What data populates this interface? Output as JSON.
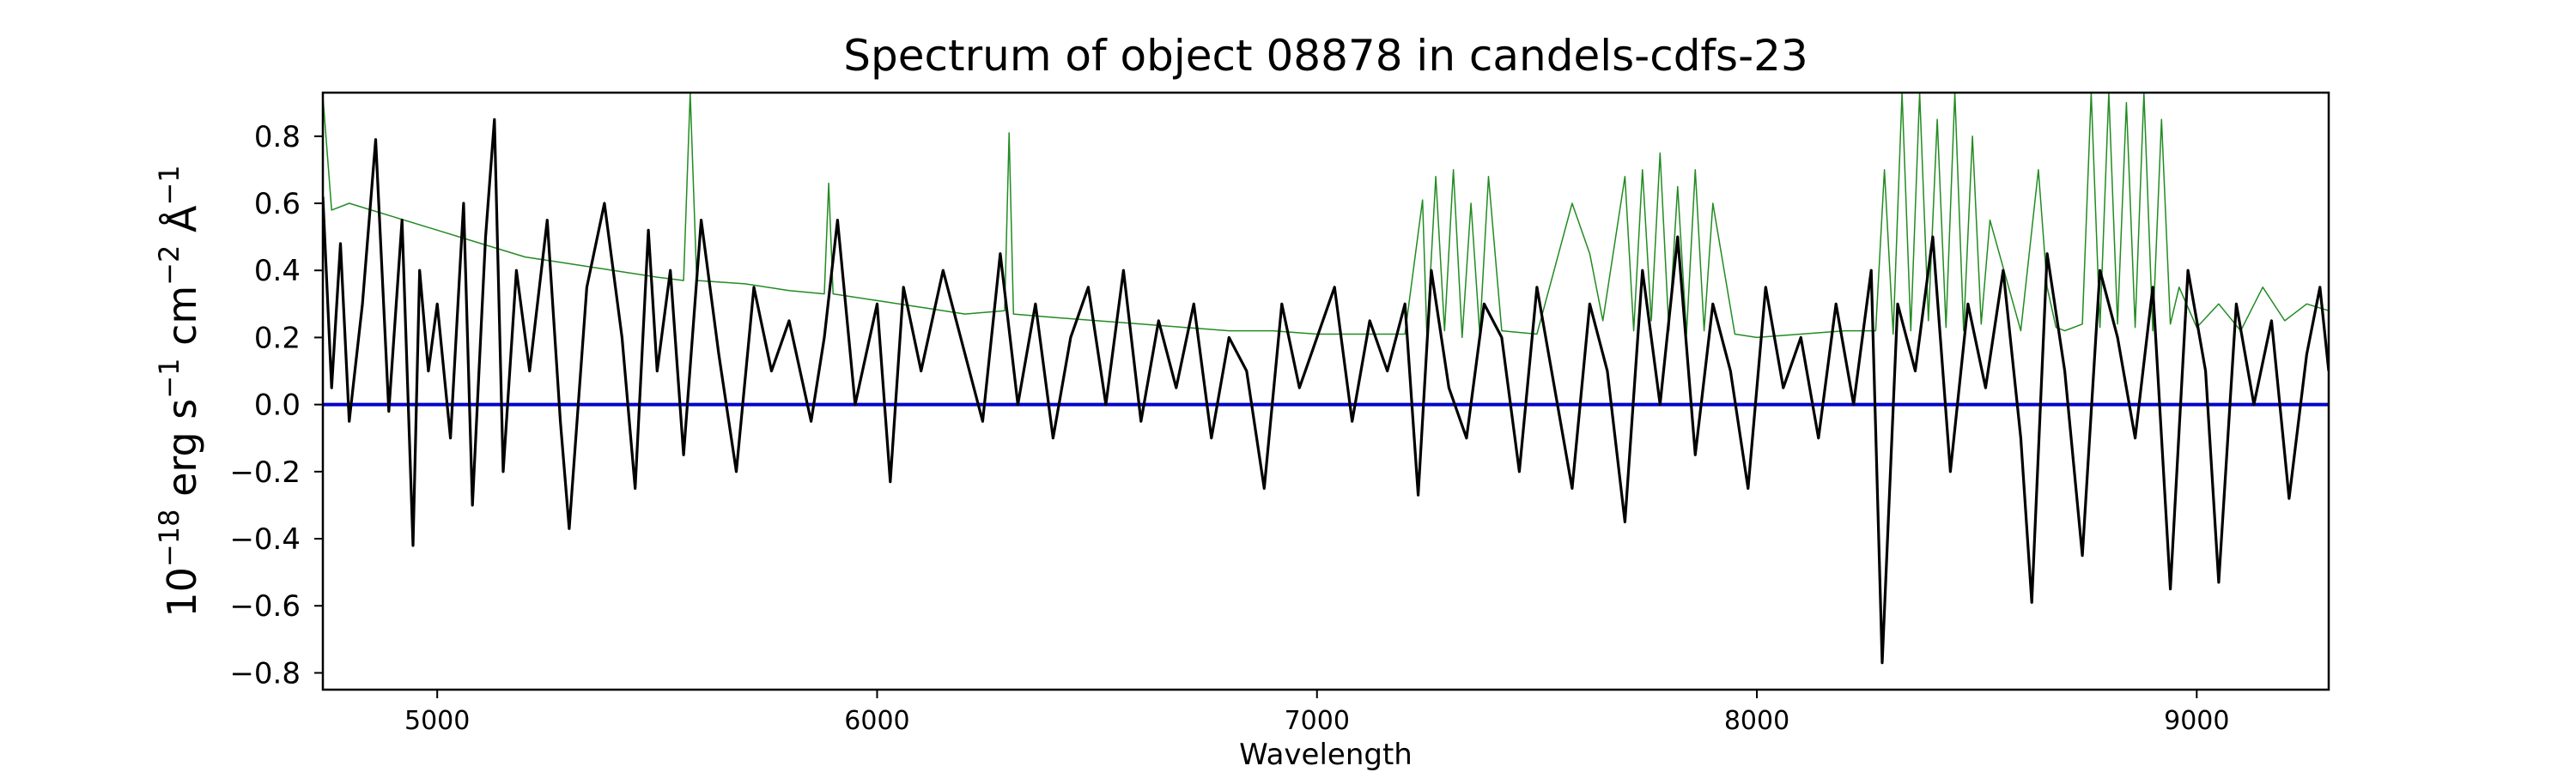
{
  "chart_data": {
    "type": "line",
    "title": "Spectrum of object 08878 in candels-cdfs-23",
    "xlabel": "Wavelength",
    "ylabel": {
      "base": "10",
      "exp1": "−18",
      "unit1": " erg s",
      "exp2": "−1",
      "unit2": " cm",
      "exp3": "−2",
      "unit3": " Å",
      "exp4": "−1"
    },
    "xlim": [
      4740,
      9300
    ],
    "ylim": [
      -0.85,
      0.93
    ],
    "xticks": [
      5000,
      6000,
      7000,
      8000,
      9000
    ],
    "xtick_labels": [
      "5000",
      "6000",
      "7000",
      "8000",
      "9000"
    ],
    "yticks": [
      0.8,
      0.6,
      0.4,
      0.2,
      0.0,
      -0.2,
      -0.4,
      -0.6,
      -0.8
    ],
    "ytick_labels": [
      "0.8",
      "0.6",
      "0.4",
      "0.2",
      "0.0",
      "−0.2",
      "−0.4",
      "−0.6",
      "−0.8"
    ],
    "grid": false,
    "series": [
      {
        "role": "flux",
        "color": "#000000",
        "x": [
          4740,
          4760,
          4780,
          4800,
          4830,
          4860,
          4890,
          4920,
          4945,
          4960,
          4980,
          5000,
          5030,
          5060,
          5080,
          5110,
          5130,
          5150,
          5180,
          5210,
          5250,
          5280,
          5300,
          5340,
          5380,
          5420,
          5450,
          5480,
          5500,
          5530,
          5560,
          5600,
          5640,
          5680,
          5720,
          5760,
          5800,
          5850,
          5880,
          5910,
          5950,
          6000,
          6030,
          6060,
          6100,
          6150,
          6200,
          6240,
          6280,
          6320,
          6360,
          6400,
          6440,
          6480,
          6520,
          6560,
          6600,
          6640,
          6680,
          6720,
          6760,
          6800,
          6840,
          6880,
          6920,
          6960,
          7000,
          7040,
          7080,
          7120,
          7160,
          7200,
          7230,
          7260,
          7300,
          7340,
          7380,
          7420,
          7460,
          7500,
          7540,
          7580,
          7620,
          7660,
          7700,
          7740,
          7780,
          7820,
          7860,
          7900,
          7940,
          7980,
          8020,
          8060,
          8100,
          8140,
          8180,
          8220,
          8260,
          8285,
          8320,
          8360,
          8400,
          8440,
          8480,
          8520,
          8560,
          8600,
          8625,
          8660,
          8700,
          8740,
          8780,
          8820,
          8860,
          8900,
          8940,
          8980,
          9020,
          9050,
          9090,
          9130,
          9170,
          9210,
          9250,
          9280,
          9300
        ],
        "y": [
          0.62,
          0.05,
          0.48,
          -0.05,
          0.3,
          0.79,
          -0.02,
          0.55,
          -0.42,
          0.4,
          0.1,
          0.3,
          -0.1,
          0.6,
          -0.3,
          0.5,
          0.85,
          -0.2,
          0.4,
          0.1,
          0.55,
          -0.05,
          -0.37,
          0.35,
          0.6,
          0.2,
          -0.25,
          0.52,
          0.1,
          0.4,
          -0.15,
          0.55,
          0.15,
          -0.2,
          0.35,
          0.1,
          0.25,
          -0.05,
          0.2,
          0.55,
          0.0,
          0.3,
          -0.23,
          0.35,
          0.1,
          0.4,
          0.15,
          -0.05,
          0.45,
          0.0,
          0.3,
          -0.1,
          0.2,
          0.35,
          0.0,
          0.4,
          -0.05,
          0.25,
          0.05,
          0.3,
          -0.1,
          0.2,
          0.1,
          -0.25,
          0.3,
          0.05,
          0.2,
          0.35,
          -0.05,
          0.25,
          0.1,
          0.3,
          -0.27,
          0.4,
          0.05,
          -0.1,
          0.3,
          0.2,
          -0.2,
          0.35,
          0.05,
          -0.25,
          0.3,
          0.1,
          -0.35,
          0.4,
          0.0,
          0.5,
          -0.15,
          0.3,
          0.1,
          -0.25,
          0.35,
          0.05,
          0.2,
          -0.1,
          0.3,
          0.0,
          0.4,
          -0.77,
          0.3,
          0.1,
          0.5,
          -0.2,
          0.3,
          0.05,
          0.4,
          -0.1,
          -0.59,
          0.45,
          0.1,
          -0.45,
          0.4,
          0.2,
          -0.1,
          0.35,
          -0.55,
          0.4,
          0.1,
          -0.53,
          0.3,
          0.0,
          0.25,
          -0.28,
          0.15,
          0.35,
          0.1
        ]
      },
      {
        "role": "model",
        "color": "#228b22",
        "x": [
          4740,
          4760,
          4800,
          4850,
          4900,
          5000,
          5100,
          5200,
          5300,
          5400,
          5500,
          5560,
          5575,
          5590,
          5700,
          5800,
          5880,
          5890,
          5900,
          6000,
          6100,
          6200,
          6290,
          6300,
          6310,
          6400,
          6500,
          6600,
          6700,
          6800,
          6900,
          7000,
          7100,
          7200,
          7240,
          7250,
          7270,
          7290,
          7310,
          7330,
          7350,
          7370,
          7390,
          7420,
          7500,
          7580,
          7620,
          7650,
          7700,
          7720,
          7740,
          7760,
          7780,
          7800,
          7820,
          7840,
          7860,
          7880,
          7900,
          7950,
          8000,
          8100,
          8200,
          8270,
          8290,
          8310,
          8330,
          8350,
          8370,
          8390,
          8410,
          8430,
          8450,
          8470,
          8490,
          8510,
          8530,
          8600,
          8640,
          8660,
          8680,
          8700,
          8740,
          8760,
          8780,
          8800,
          8820,
          8840,
          8860,
          8880,
          8900,
          8920,
          8940,
          8960,
          9000,
          9050,
          9100,
          9150,
          9200,
          9250,
          9300
        ],
        "y": [
          0.92,
          0.58,
          0.6,
          0.58,
          0.56,
          0.52,
          0.48,
          0.44,
          0.42,
          0.4,
          0.38,
          0.37,
          0.93,
          0.37,
          0.36,
          0.34,
          0.33,
          0.66,
          0.33,
          0.31,
          0.29,
          0.27,
          0.28,
          0.81,
          0.27,
          0.26,
          0.25,
          0.24,
          0.23,
          0.22,
          0.22,
          0.21,
          0.21,
          0.21,
          0.61,
          0.2,
          0.68,
          0.22,
          0.7,
          0.2,
          0.6,
          0.21,
          0.68,
          0.22,
          0.21,
          0.6,
          0.45,
          0.25,
          0.68,
          0.22,
          0.7,
          0.25,
          0.75,
          0.22,
          0.65,
          0.21,
          0.7,
          0.22,
          0.6,
          0.21,
          0.2,
          0.21,
          0.22,
          0.22,
          0.7,
          0.21,
          0.93,
          0.22,
          0.93,
          0.25,
          0.85,
          0.23,
          0.93,
          0.22,
          0.8,
          0.24,
          0.55,
          0.22,
          0.7,
          0.35,
          0.23,
          0.22,
          0.24,
          0.93,
          0.23,
          0.93,
          0.24,
          0.9,
          0.23,
          0.93,
          0.22,
          0.85,
          0.24,
          0.35,
          0.23,
          0.3,
          0.22,
          0.35,
          0.25,
          0.3,
          0.28
        ]
      },
      {
        "role": "zero",
        "color": "#0000cc",
        "x": [
          4740,
          9300
        ],
        "y": [
          0.0,
          0.0
        ]
      }
    ]
  }
}
